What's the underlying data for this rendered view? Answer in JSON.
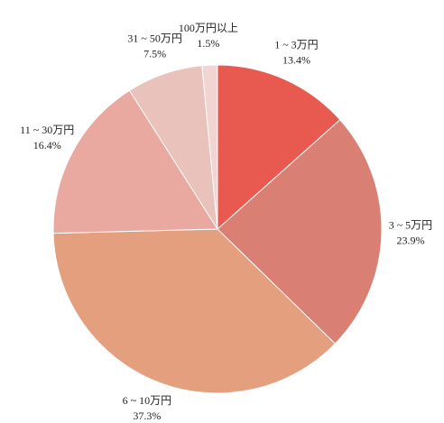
{
  "chart_data": {
    "type": "pie",
    "categories": [
      "1 ~ 3万円",
      "3 ~ 5万円",
      "6 ~ 10万円",
      "11 ~ 30万円",
      "31 ~ 50万円",
      "100万円以上"
    ],
    "values": [
      13.4,
      23.9,
      37.3,
      16.4,
      7.5,
      1.5
    ],
    "value_labels": [
      "13.4%",
      "23.9%",
      "37.3%",
      "16.4%",
      "7.5%",
      "1.5%"
    ],
    "colors": [
      "#e85a4f",
      "#d97f74",
      "#e39f7e",
      "#eaa9a0",
      "#e9c2bc",
      "#f2d5d3"
    ]
  }
}
